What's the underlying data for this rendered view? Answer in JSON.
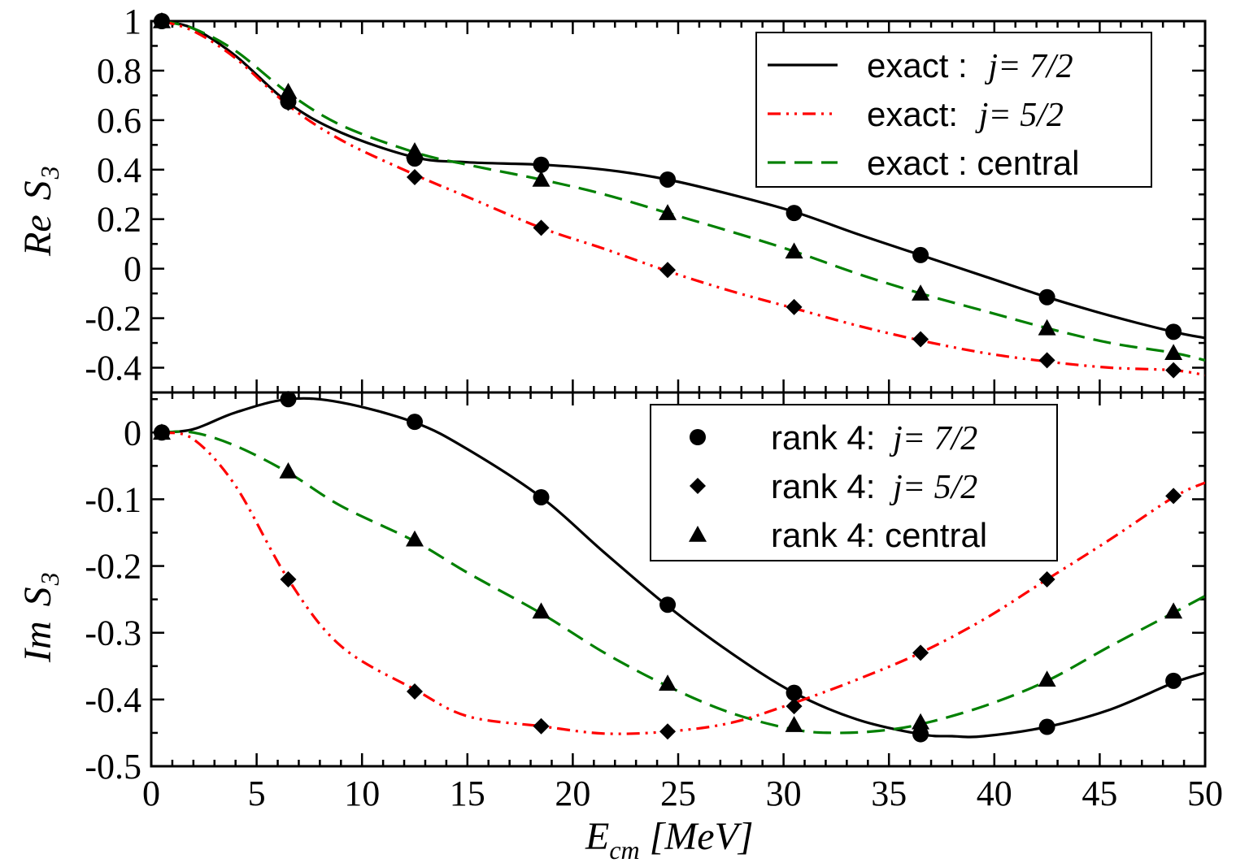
{
  "chart_data": [
    {
      "type": "line",
      "panel": "top",
      "ylabel_main": "Re",
      "ylabel_symbol": "S",
      "ylabel_sub": "3",
      "xlim": [
        0,
        50
      ],
      "ylim": [
        -0.5,
        1.0
      ],
      "yticks": [
        -0.4,
        -0.2,
        0,
        0.2,
        0.4,
        0.6,
        0.8,
        1
      ],
      "ytick_labels": [
        "-0.4",
        "-0.2",
        "0",
        "0.2",
        "0.4",
        "0.6",
        "0.8",
        "1"
      ],
      "legend_placement": "top-right",
      "series": [
        {
          "name": "exact : j= 7/2",
          "legend_plain": "exact : ",
          "legend_ital": "j= 7/2",
          "style": "solid",
          "color": "#000000",
          "x": [
            0.5,
            2,
            4,
            6.5,
            9,
            12.5,
            15,
            18.5,
            21.5,
            24.5,
            27.5,
            30.5,
            33.5,
            36.5,
            39.5,
            42.5,
            45.5,
            48.5,
            50
          ],
          "y": [
            1.0,
            0.97,
            0.86,
            0.67,
            0.55,
            0.45,
            0.43,
            0.42,
            0.4,
            0.36,
            0.3,
            0.23,
            0.14,
            0.055,
            -0.03,
            -0.115,
            -0.19,
            -0.255,
            -0.28
          ]
        },
        {
          "name": "exact: j= 5/2",
          "legend_plain": "exact: ",
          "legend_ital": "j= 5/2",
          "style": "dashdotdot",
          "color": "#ff0000",
          "x": [
            0.5,
            2,
            4,
            6.5,
            9,
            12.5,
            15,
            18.5,
            21.5,
            24.5,
            27.5,
            30.5,
            33.5,
            36.5,
            39.5,
            42.5,
            45.5,
            48.5,
            50
          ],
          "y": [
            1.0,
            0.96,
            0.85,
            0.66,
            0.52,
            0.38,
            0.29,
            0.165,
            0.08,
            -0.01,
            -0.09,
            -0.16,
            -0.23,
            -0.29,
            -0.34,
            -0.375,
            -0.4,
            -0.41,
            -0.43
          ]
        },
        {
          "name": "exact : central",
          "legend_plain": "exact : central",
          "legend_ital": "",
          "style": "dashed",
          "color": "#008000",
          "x": [
            0.5,
            2,
            4,
            6.5,
            9,
            12.5,
            15,
            18.5,
            21.5,
            24.5,
            27.5,
            30.5,
            33.5,
            36.5,
            39.5,
            42.5,
            45.5,
            48.5,
            50
          ],
          "y": [
            1.0,
            0.97,
            0.88,
            0.71,
            0.58,
            0.47,
            0.42,
            0.36,
            0.3,
            0.225,
            0.15,
            0.07,
            -0.02,
            -0.1,
            -0.17,
            -0.24,
            -0.3,
            -0.34,
            -0.37
          ]
        }
      ],
      "markers": [
        {
          "symbol": "circle",
          "x": [
            0.5,
            6.5,
            12.5,
            18.5,
            24.5,
            30.5,
            36.5,
            42.5,
            48.5
          ],
          "y": [
            1.0,
            0.675,
            0.445,
            0.42,
            0.36,
            0.225,
            0.055,
            -0.115,
            -0.255
          ]
        },
        {
          "symbol": "diamond",
          "x": [
            0.5,
            6.5,
            12.5,
            18.5,
            24.5,
            30.5,
            36.5,
            42.5,
            48.5
          ],
          "y": [
            1.0,
            0.67,
            0.37,
            0.165,
            -0.005,
            -0.155,
            -0.285,
            -0.37,
            -0.41
          ]
        },
        {
          "symbol": "triangle",
          "x": [
            0.5,
            6.5,
            12.5,
            18.5,
            24.5,
            30.5,
            36.5,
            42.5,
            48.5
          ],
          "y": [
            1.0,
            0.715,
            0.475,
            0.36,
            0.225,
            0.07,
            -0.1,
            -0.24,
            -0.34
          ]
        }
      ]
    },
    {
      "type": "line",
      "panel": "bottom",
      "ylabel_main": "Im",
      "ylabel_symbol": "S",
      "ylabel_sub": "3",
      "xlabel_main": "E",
      "xlabel_sub": "cm",
      "xlabel_unit": "[MeV]",
      "xlim": [
        0,
        50
      ],
      "ylim": [
        -0.5,
        0.06
      ],
      "xticks": [
        0,
        5,
        10,
        15,
        20,
        25,
        30,
        35,
        40,
        45,
        50
      ],
      "xtick_labels": [
        "0",
        "5",
        "10",
        "15",
        "20",
        "25",
        "30",
        "35",
        "40",
        "45",
        "50"
      ],
      "yticks": [
        -0.5,
        -0.4,
        -0.3,
        -0.2,
        -0.1,
        0
      ],
      "ytick_labels": [
        "-0.5",
        "-0.4",
        "-0.3",
        "-0.2",
        "-0.1",
        "0"
      ],
      "legend_placement": "top-right",
      "series": [
        {
          "name": "exact : j= 7/2",
          "style": "solid",
          "color": "#000000",
          "x": [
            0.5,
            2,
            4,
            6.5,
            9,
            12.5,
            15,
            18.5,
            21.5,
            24.5,
            27.5,
            30.5,
            33.5,
            36.5,
            38,
            39.5,
            42.5,
            45.5,
            48.5,
            50
          ],
          "y": [
            0.0,
            0.005,
            0.03,
            0.05,
            0.045,
            0.015,
            -0.025,
            -0.097,
            -0.18,
            -0.26,
            -0.33,
            -0.39,
            -0.43,
            -0.452,
            -0.455,
            -0.455,
            -0.441,
            -0.415,
            -0.375,
            -0.36
          ]
        },
        {
          "name": "exact: j= 5/2",
          "style": "dashdotdot",
          "color": "#ff0000",
          "x": [
            0.5,
            2,
            4,
            6.5,
            9,
            12.5,
            15,
            18.5,
            21.5,
            24.5,
            27.5,
            30.5,
            33.5,
            36.5,
            39.5,
            42.5,
            45.5,
            48.5,
            50
          ],
          "y": [
            0.0,
            -0.01,
            -0.08,
            -0.22,
            -0.32,
            -0.385,
            -0.425,
            -0.44,
            -0.451,
            -0.448,
            -0.435,
            -0.405,
            -0.37,
            -0.33,
            -0.28,
            -0.22,
            -0.16,
            -0.097,
            -0.075
          ]
        },
        {
          "name": "exact : central",
          "style": "dashed",
          "color": "#008000",
          "x": [
            0.5,
            2,
            4,
            6.5,
            9,
            12.5,
            15,
            18.5,
            21.5,
            24.5,
            27.5,
            30.5,
            32.5,
            34.5,
            36.5,
            39.5,
            42.5,
            45.5,
            48.5,
            50
          ],
          "y": [
            0.0,
            0.0,
            -0.02,
            -0.06,
            -0.11,
            -0.163,
            -0.21,
            -0.271,
            -0.33,
            -0.38,
            -0.42,
            -0.445,
            -0.45,
            -0.447,
            -0.437,
            -0.41,
            -0.372,
            -0.32,
            -0.27,
            -0.245
          ]
        }
      ],
      "markers": [
        {
          "symbol": "circle",
          "x": [
            0.5,
            6.5,
            12.5,
            18.5,
            24.5,
            30.5,
            36.5,
            42.5,
            48.5
          ],
          "y": [
            0.0,
            0.05,
            0.016,
            -0.097,
            -0.258,
            -0.39,
            -0.452,
            -0.441,
            -0.372
          ]
        },
        {
          "symbol": "diamond",
          "x": [
            0.5,
            6.5,
            12.5,
            18.5,
            24.5,
            30.5,
            36.5,
            42.5,
            48.5
          ],
          "y": [
            0.0,
            -0.22,
            -0.388,
            -0.44,
            -0.448,
            -0.41,
            -0.33,
            -0.22,
            -0.095
          ]
        },
        {
          "symbol": "triangle",
          "x": [
            0.5,
            6.5,
            12.5,
            18.5,
            24.5,
            30.5,
            36.5,
            42.5,
            48.5
          ],
          "y": [
            0.0,
            -0.058,
            -0.16,
            -0.268,
            -0.376,
            -0.438,
            -0.434,
            -0.37,
            -0.268
          ]
        }
      ],
      "legend": [
        {
          "symbol": "circle",
          "legend_plain": "rank 4:  ",
          "legend_ital": "j= 7/2"
        },
        {
          "symbol": "diamond",
          "legend_plain": "rank 4:  ",
          "legend_ital": "j= 5/2"
        },
        {
          "symbol": "triangle",
          "legend_plain": "rank 4: central",
          "legend_ital": ""
        }
      ]
    }
  ]
}
